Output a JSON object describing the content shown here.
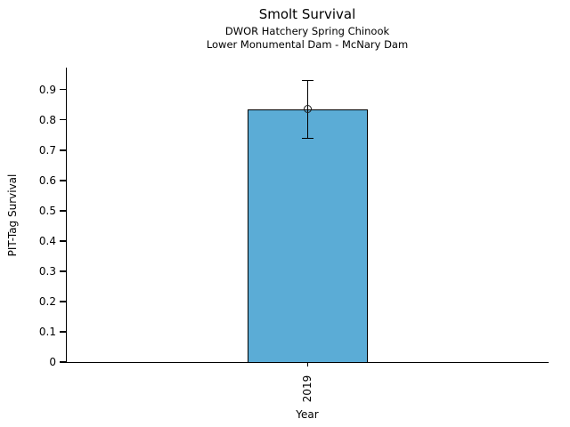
{
  "header": {
    "title": "Smolt Survival",
    "subtitle1": "DWOR Hatchery Spring Chinook",
    "subtitle2": "Lower Monumental Dam - McNary Dam"
  },
  "chart_data": {
    "type": "bar",
    "title": "Smolt Survival",
    "subtitles": [
      "DWOR Hatchery Spring Chinook",
      "Lower Monumental Dam - McNary Dam"
    ],
    "categories": [
      "2019"
    ],
    "values": [
      0.835
    ],
    "error_bars": [
      {
        "lower": 0.74,
        "upper": 0.93
      }
    ],
    "marker": "open-circle",
    "xlabel": "Year",
    "ylabel": "PIT-Tag Survival",
    "ylim": [
      0,
      0.976
    ],
    "yticks": [
      0,
      0.1,
      0.2,
      0.3,
      0.4,
      0.5,
      0.6,
      0.7,
      0.8,
      0.9
    ],
    "ytick_labels": [
      "0",
      "0.1",
      "0.2",
      "0.3",
      "0.4",
      "0.5",
      "0.6",
      "0.7",
      "0.8",
      "0.9"
    ],
    "grid": false,
    "legend_position": "none",
    "bar_color": "#5bacd6",
    "bar_edge_color": "#000000",
    "error_color": "#000000"
  }
}
